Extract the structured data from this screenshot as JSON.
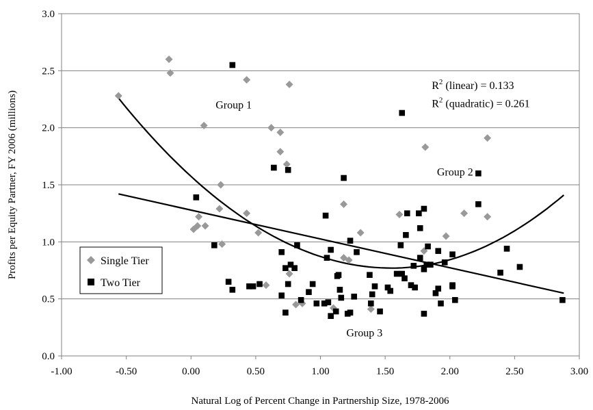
{
  "chart_data": {
    "type": "scatter",
    "title": "",
    "xlabel": "Natural Log of Percent Change in Partnership Size, 1978-2006",
    "ylabel": "Profits per Equity Partner, FY 2006 (millions)",
    "xlim": [
      -1.0,
      3.0
    ],
    "ylim": [
      0.0,
      3.0
    ],
    "xticks": [
      "-1.00",
      "-0.50",
      "0.00",
      "0.50",
      "1.00",
      "1.50",
      "2.00",
      "2.50",
      "3.00"
    ],
    "yticks": [
      "0.0",
      "0.5",
      "1.0",
      "1.5",
      "2.0",
      "2.5",
      "3.0"
    ],
    "grid": "horizontal",
    "legend_position": "bottom-left",
    "colors": {
      "single_tier": "#999999",
      "two_tier": "#000000",
      "fit": "#000000"
    },
    "annotations": [
      {
        "text": "Group 1",
        "x": 0.19,
        "y": 2.17
      },
      {
        "text": "Group 2",
        "x": 1.9,
        "y": 1.58
      },
      {
        "text": "Group 3",
        "x": 1.2,
        "y": 0.17
      },
      {
        "text": "R",
        "sup": "2",
        "rest": " (linear) = 0.133",
        "x": 1.86,
        "y": 2.34
      },
      {
        "text": "R",
        "sup": "2",
        "rest": " (quadratic) = 0.261",
        "x": 1.86,
        "y": 2.18
      }
    ],
    "series": [
      {
        "name": "Single Tier",
        "marker": "diamond",
        "points": [
          [
            -0.56,
            2.28
          ],
          [
            -0.17,
            2.6
          ],
          [
            -0.16,
            2.48
          ],
          [
            0.1,
            2.02
          ],
          [
            0.43,
            2.42
          ],
          [
            0.76,
            2.38
          ],
          [
            0.62,
            2.0
          ],
          [
            0.69,
            1.96
          ],
          [
            0.69,
            1.79
          ],
          [
            0.74,
            1.68
          ],
          [
            0.23,
            1.5
          ],
          [
            0.22,
            1.29
          ],
          [
            0.43,
            1.25
          ],
          [
            0.52,
            1.08
          ],
          [
            0.05,
            1.14
          ],
          [
            0.11,
            1.14
          ],
          [
            0.02,
            1.11
          ],
          [
            0.06,
            1.22
          ],
          [
            0.24,
            0.98
          ],
          [
            0.58,
            0.62
          ],
          [
            0.76,
            0.72
          ],
          [
            0.86,
            0.46
          ],
          [
            0.81,
            0.45
          ],
          [
            1.1,
            0.42
          ],
          [
            1.18,
            1.33
          ],
          [
            1.31,
            1.08
          ],
          [
            1.18,
            0.86
          ],
          [
            1.22,
            0.84
          ],
          [
            1.39,
            0.41
          ],
          [
            1.61,
            1.24
          ],
          [
            1.81,
            1.83
          ],
          [
            1.8,
            0.92
          ],
          [
            1.97,
            1.05
          ],
          [
            2.11,
            1.25
          ],
          [
            2.29,
            1.91
          ],
          [
            2.29,
            1.22
          ]
        ]
      },
      {
        "name": "Two Tier",
        "marker": "square",
        "points": [
          [
            0.32,
            2.55
          ],
          [
            1.63,
            2.13
          ],
          [
            0.64,
            1.65
          ],
          [
            0.75,
            1.63
          ],
          [
            1.18,
            1.56
          ],
          [
            2.22,
            1.6
          ],
          [
            2.22,
            1.33
          ],
          [
            0.04,
            1.39
          ],
          [
            1.04,
            1.23
          ],
          [
            1.67,
            1.25
          ],
          [
            1.76,
            1.25
          ],
          [
            1.8,
            1.29
          ],
          [
            1.77,
            1.12
          ],
          [
            1.62,
            0.97
          ],
          [
            1.66,
            1.06
          ],
          [
            1.23,
            1.01
          ],
          [
            1.83,
            0.96
          ],
          [
            1.96,
            0.82
          ],
          [
            1.91,
            0.92
          ],
          [
            0.18,
            0.97
          ],
          [
            0.7,
            0.91
          ],
          [
            0.82,
            0.97
          ],
          [
            1.05,
            0.86
          ],
          [
            1.08,
            0.93
          ],
          [
            1.28,
            0.91
          ],
          [
            1.72,
            0.79
          ],
          [
            1.77,
            0.86
          ],
          [
            1.82,
            0.8
          ],
          [
            1.85,
            0.8
          ],
          [
            1.8,
            0.76
          ],
          [
            2.02,
            0.89
          ],
          [
            2.44,
            0.94
          ],
          [
            0.77,
            0.8
          ],
          [
            0.8,
            0.77
          ],
          [
            0.73,
            0.77
          ],
          [
            0.29,
            0.65
          ],
          [
            0.32,
            0.58
          ],
          [
            0.45,
            0.61
          ],
          [
            0.48,
            0.61
          ],
          [
            0.53,
            0.63
          ],
          [
            0.7,
            0.53
          ],
          [
            0.75,
            0.63
          ],
          [
            0.73,
            0.38
          ],
          [
            0.85,
            0.49
          ],
          [
            0.91,
            0.56
          ],
          [
            0.94,
            0.63
          ],
          [
            0.97,
            0.46
          ],
          [
            1.03,
            0.46
          ],
          [
            1.06,
            0.47
          ],
          [
            1.08,
            0.35
          ],
          [
            1.12,
            0.39
          ],
          [
            1.13,
            0.7
          ],
          [
            1.14,
            0.71
          ],
          [
            1.15,
            0.58
          ],
          [
            1.16,
            0.51
          ],
          [
            1.21,
            0.37
          ],
          [
            1.23,
            0.38
          ],
          [
            1.26,
            0.52
          ],
          [
            1.38,
            0.71
          ],
          [
            1.39,
            0.46
          ],
          [
            1.4,
            0.54
          ],
          [
            1.42,
            0.61
          ],
          [
            1.46,
            0.39
          ],
          [
            1.52,
            0.6
          ],
          [
            1.54,
            0.57
          ],
          [
            1.59,
            0.72
          ],
          [
            1.63,
            0.72
          ],
          [
            1.65,
            0.68
          ],
          [
            1.7,
            0.62
          ],
          [
            1.73,
            0.6
          ],
          [
            1.8,
            0.37
          ],
          [
            1.89,
            0.55
          ],
          [
            1.91,
            0.59
          ],
          [
            1.93,
            0.46
          ],
          [
            2.02,
            0.61
          ],
          [
            2.02,
            0.62
          ],
          [
            2.04,
            0.49
          ],
          [
            2.39,
            0.73
          ],
          [
            2.54,
            0.78
          ],
          [
            2.87,
            0.49
          ]
        ]
      }
    ],
    "fits": [
      {
        "kind": "linear",
        "from": [
          -0.56,
          1.42
        ],
        "to": [
          2.88,
          0.55
        ]
      },
      {
        "kind": "quadratic",
        "x_from": -0.56,
        "x_to": 2.88,
        "y_left": 2.26,
        "y_min": 0.77,
        "x_min": 1.55,
        "y_right": 1.41
      }
    ]
  }
}
